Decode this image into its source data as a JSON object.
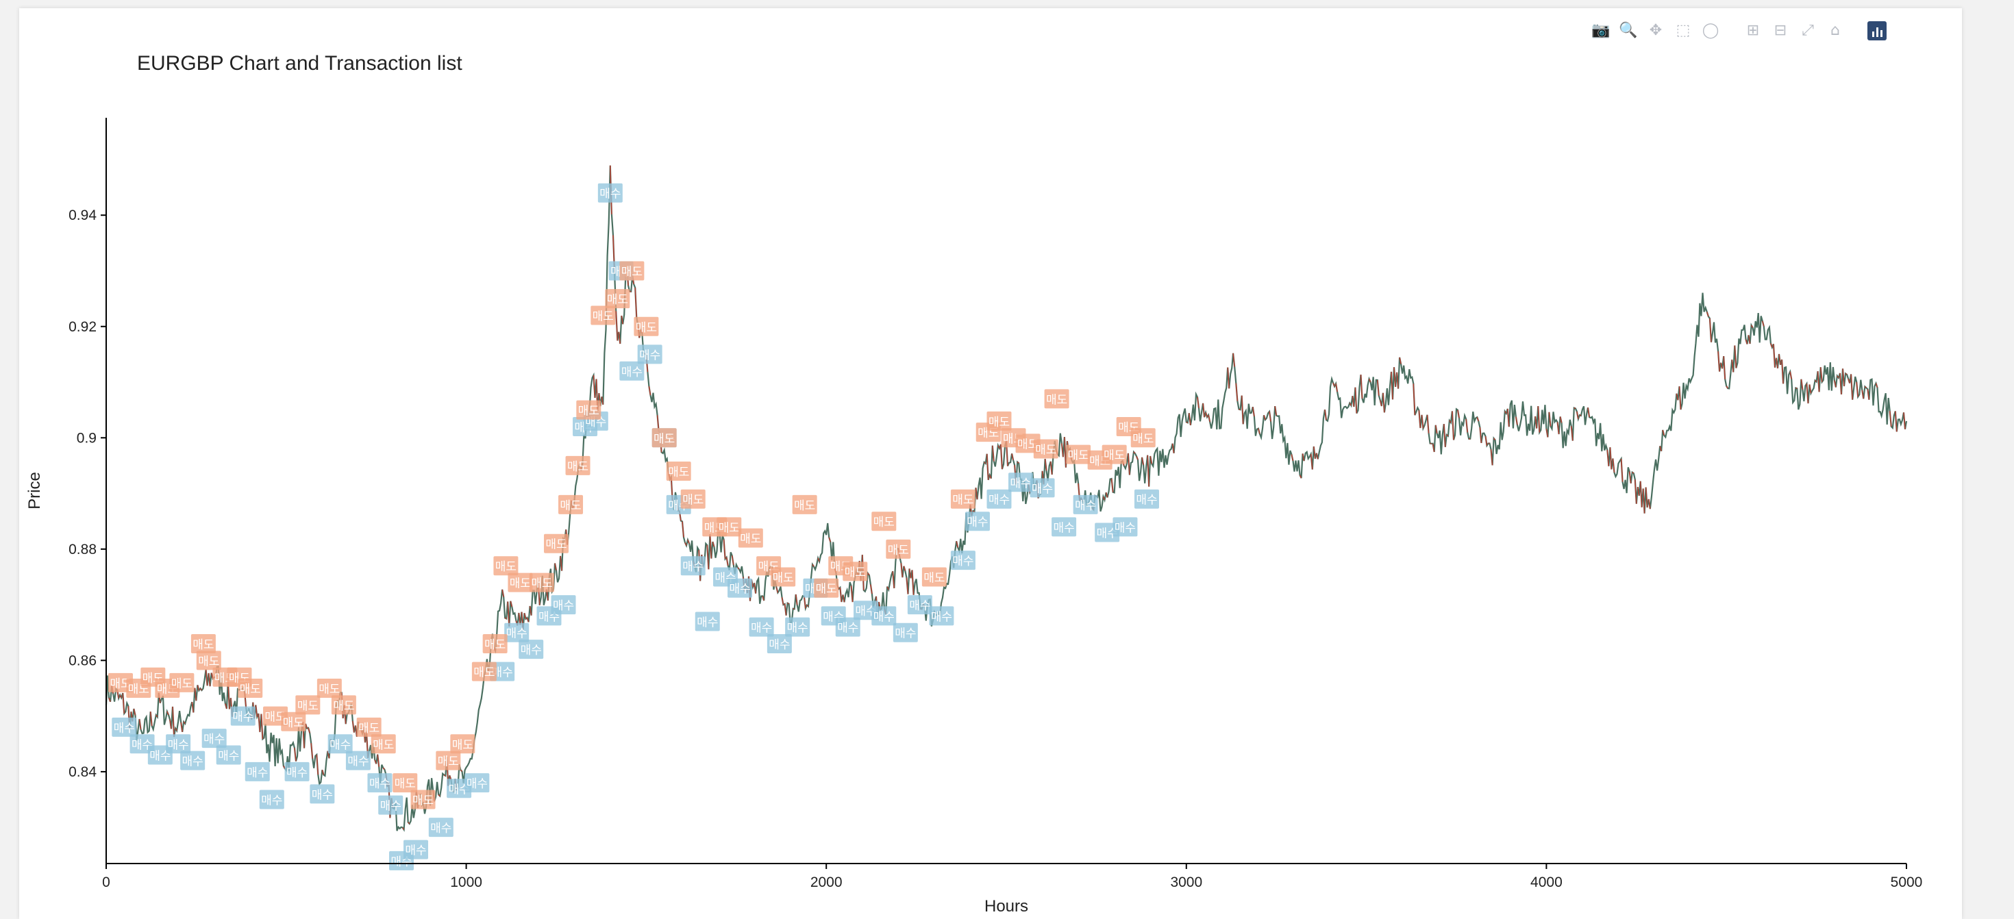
{
  "chart_data": {
    "type": "line",
    "title": "EURGBP Chart and Transaction list",
    "xlabel": "Hours",
    "ylabel": "Price",
    "xlim": [
      0,
      5000
    ],
    "ylim": [
      0.8235,
      0.9575
    ],
    "xticks": [
      0,
      1000,
      2000,
      3000,
      4000,
      5000
    ],
    "xtick_labels": [
      "0",
      "1000",
      "2000",
      "3000",
      "4000",
      "5000"
    ],
    "yticks": [
      0.84,
      0.86,
      0.88,
      0.9,
      0.92,
      0.94
    ],
    "ytick_labels": [
      "0.84",
      "0.86",
      "0.88",
      "0.9",
      "0.92",
      "0.94"
    ],
    "grid": false,
    "series": [
      {
        "name": "",
        "color": "#4a6f60",
        "up_color": "#3f8f7a",
        "down_color": "#c0392b",
        "x": [
          0,
          50,
          100,
          150,
          200,
          250,
          300,
          350,
          400,
          450,
          500,
          550,
          600,
          650,
          700,
          750,
          800,
          850,
          900,
          950,
          1000,
          1050,
          1100,
          1150,
          1200,
          1250,
          1300,
          1350,
          1380,
          1400,
          1420,
          1450,
          1500,
          1550,
          1600,
          1650,
          1700,
          1750,
          1800,
          1850,
          1900,
          1950,
          2000,
          2050,
          2100,
          2150,
          2200,
          2250,
          2300,
          2350,
          2400,
          2450,
          2500,
          2550,
          2600,
          2650,
          2700,
          2750,
          2800,
          2850,
          2900,
          2950,
          3000,
          3050,
          3100,
          3130,
          3150,
          3200,
          3250,
          3300,
          3350,
          3400,
          3450,
          3500,
          3550,
          3600,
          3650,
          3700,
          3750,
          3800,
          3850,
          3900,
          3950,
          4000,
          4050,
          4100,
          4150,
          4200,
          4250,
          4280,
          4300,
          4350,
          4400,
          4430,
          4450,
          4500,
          4550,
          4600,
          4650,
          4700,
          4750,
          4800,
          4850,
          4900,
          4950,
          5000
        ],
        "y": [
          0.855,
          0.852,
          0.846,
          0.852,
          0.848,
          0.853,
          0.858,
          0.852,
          0.853,
          0.845,
          0.842,
          0.847,
          0.838,
          0.852,
          0.848,
          0.843,
          0.832,
          0.833,
          0.836,
          0.84,
          0.838,
          0.855,
          0.87,
          0.866,
          0.872,
          0.875,
          0.888,
          0.91,
          0.905,
          0.947,
          0.915,
          0.93,
          0.915,
          0.895,
          0.885,
          0.877,
          0.882,
          0.875,
          0.872,
          0.875,
          0.868,
          0.872,
          0.885,
          0.87,
          0.876,
          0.868,
          0.878,
          0.872,
          0.868,
          0.876,
          0.887,
          0.895,
          0.898,
          0.89,
          0.892,
          0.9,
          0.892,
          0.888,
          0.891,
          0.896,
          0.894,
          0.898,
          0.905,
          0.905,
          0.904,
          0.916,
          0.905,
          0.902,
          0.903,
          0.896,
          0.895,
          0.908,
          0.905,
          0.91,
          0.907,
          0.913,
          0.904,
          0.899,
          0.903,
          0.902,
          0.897,
          0.905,
          0.903,
          0.903,
          0.901,
          0.904,
          0.9,
          0.895,
          0.89,
          0.888,
          0.893,
          0.905,
          0.91,
          0.924,
          0.922,
          0.91,
          0.918,
          0.92,
          0.912,
          0.908,
          0.91,
          0.911,
          0.909,
          0.908,
          0.905,
          0.903
        ]
      }
    ],
    "transactions": {
      "sell_color": "#f4a582",
      "buy_color": "#92c5de",
      "sell_label": "매도",
      "buy_label": "매수",
      "sells": [
        [
          40,
          0.856
        ],
        [
          90,
          0.855
        ],
        [
          130,
          0.857
        ],
        [
          170,
          0.855
        ],
        [
          210,
          0.856
        ],
        [
          270,
          0.863
        ],
        [
          285,
          0.86
        ],
        [
          330,
          0.857
        ],
        [
          370,
          0.857
        ],
        [
          400,
          0.855
        ],
        [
          470,
          0.85
        ],
        [
          520,
          0.849
        ],
        [
          560,
          0.852
        ],
        [
          620,
          0.855
        ],
        [
          660,
          0.852
        ],
        [
          730,
          0.848
        ],
        [
          770,
          0.845
        ],
        [
          830,
          0.838
        ],
        [
          880,
          0.835
        ],
        [
          950,
          0.842
        ],
        [
          990,
          0.845
        ],
        [
          1050,
          0.858
        ],
        [
          1080,
          0.863
        ],
        [
          1110,
          0.877
        ],
        [
          1150,
          0.874
        ],
        [
          1210,
          0.874
        ],
        [
          1250,
          0.881
        ],
        [
          1290,
          0.888
        ],
        [
          1310,
          0.895
        ],
        [
          1340,
          0.905
        ],
        [
          1380,
          0.922
        ],
        [
          1420,
          0.925
        ],
        [
          1460,
          0.93
        ],
        [
          1500,
          0.92
        ],
        [
          1550,
          0.9
        ],
        [
          1590,
          0.894
        ],
        [
          1630,
          0.889
        ],
        [
          1690,
          0.884
        ],
        [
          1730,
          0.884
        ],
        [
          1790,
          0.882
        ],
        [
          1840,
          0.877
        ],
        [
          1880,
          0.875
        ],
        [
          1940,
          0.888
        ],
        [
          2000,
          0.873
        ],
        [
          2040,
          0.877
        ],
        [
          2080,
          0.876
        ],
        [
          2160,
          0.885
        ],
        [
          2200,
          0.88
        ],
        [
          2300,
          0.875
        ],
        [
          2380,
          0.889
        ],
        [
          2450,
          0.901
        ],
        [
          2480,
          0.903
        ],
        [
          2520,
          0.9
        ],
        [
          2560,
          0.899
        ],
        [
          2610,
          0.898
        ],
        [
          2640,
          0.907
        ],
        [
          2700,
          0.897
        ],
        [
          2760,
          0.896
        ],
        [
          2800,
          0.897
        ],
        [
          2840,
          0.902
        ],
        [
          2880,
          0.9
        ]
      ],
      "buys": [
        [
          50,
          0.848
        ],
        [
          100,
          0.845
        ],
        [
          150,
          0.843
        ],
        [
          200,
          0.845
        ],
        [
          240,
          0.842
        ],
        [
          300,
          0.846
        ],
        [
          340,
          0.843
        ],
        [
          380,
          0.85
        ],
        [
          420,
          0.84
        ],
        [
          460,
          0.835
        ],
        [
          530,
          0.84
        ],
        [
          600,
          0.836
        ],
        [
          650,
          0.845
        ],
        [
          700,
          0.842
        ],
        [
          760,
          0.838
        ],
        [
          790,
          0.834
        ],
        [
          820,
          0.824
        ],
        [
          860,
          0.826
        ],
        [
          930,
          0.83
        ],
        [
          980,
          0.837
        ],
        [
          1030,
          0.838
        ],
        [
          1100,
          0.858
        ],
        [
          1140,
          0.865
        ],
        [
          1180,
          0.862
        ],
        [
          1230,
          0.868
        ],
        [
          1270,
          0.87
        ],
        [
          1330,
          0.902
        ],
        [
          1360,
          0.903
        ],
        [
          1400,
          0.944
        ],
        [
          1430,
          0.93
        ],
        [
          1460,
          0.912
        ],
        [
          1510,
          0.915
        ],
        [
          1550,
          0.9
        ],
        [
          1590,
          0.888
        ],
        [
          1630,
          0.877
        ],
        [
          1670,
          0.867
        ],
        [
          1720,
          0.875
        ],
        [
          1760,
          0.873
        ],
        [
          1820,
          0.866
        ],
        [
          1870,
          0.863
        ],
        [
          1920,
          0.866
        ],
        [
          1970,
          0.873
        ],
        [
          2020,
          0.868
        ],
        [
          2060,
          0.866
        ],
        [
          2110,
          0.869
        ],
        [
          2160,
          0.868
        ],
        [
          2220,
          0.865
        ],
        [
          2260,
          0.87
        ],
        [
          2320,
          0.868
        ],
        [
          2380,
          0.878
        ],
        [
          2420,
          0.885
        ],
        [
          2480,
          0.889
        ],
        [
          2540,
          0.892
        ],
        [
          2600,
          0.891
        ],
        [
          2660,
          0.884
        ],
        [
          2720,
          0.888
        ],
        [
          2780,
          0.883
        ],
        [
          2830,
          0.884
        ],
        [
          2890,
          0.889
        ]
      ]
    }
  },
  "modebar": {
    "icons": [
      "camera-icon",
      "zoom-icon",
      "pan-icon",
      "box-select-icon",
      "lasso-select-icon",
      "zoom-in-icon",
      "zoom-out-icon",
      "autoscale-icon",
      "reset-axes-icon",
      "plotly-logo-icon"
    ]
  }
}
